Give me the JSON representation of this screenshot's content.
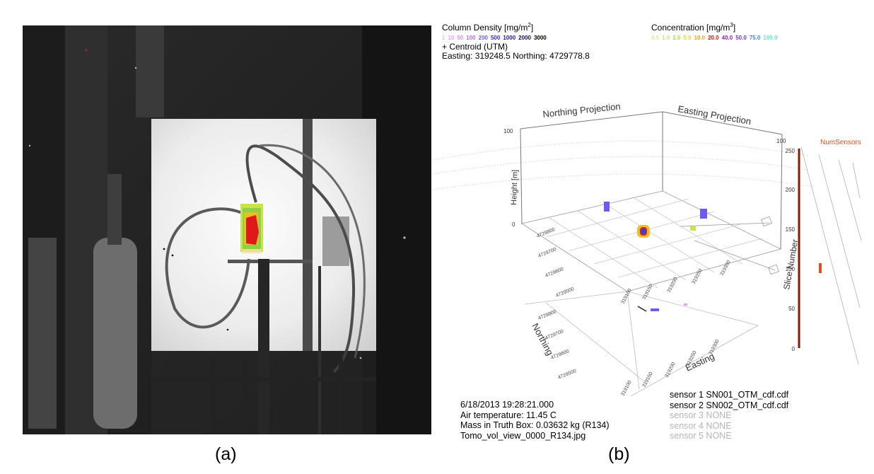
{
  "captions": {
    "a": "(a)",
    "b": "(b)"
  },
  "legend": {
    "column_density_title": "Column Density [mg/m",
    "column_density_sup": "2",
    "column_density_close": "]",
    "column_density_scale": [
      {
        "label": "1",
        "color": "#f3b8f0"
      },
      {
        "label": "10",
        "color": "#e7a0e8"
      },
      {
        "label": "50",
        "color": "#d78ee0"
      },
      {
        "label": "100",
        "color": "#b06ee8"
      },
      {
        "label": "200",
        "color": "#6a64e8"
      },
      {
        "label": "500",
        "color": "#2e2ed8"
      },
      {
        "label": "1000",
        "color": "#1a1aa8"
      },
      {
        "label": "2000",
        "color": "#0f0f60"
      },
      {
        "label": "3000",
        "color": "#000000"
      }
    ],
    "centroid_label": "+ Centroid (UTM)",
    "easting_northing": "Easting: 319248.5 Northing: 4729778.8",
    "concentration_title": "Concentration [mg/m",
    "concentration_sup": "3",
    "concentration_close": "]",
    "concentration_scale": [
      {
        "label": "0.5",
        "color": "#d4f08c"
      },
      {
        "label": "1.0",
        "color": "#c4e86c"
      },
      {
        "label": "2.0",
        "color": "#aedc4c"
      },
      {
        "label": "5.0",
        "color": "#e8d820"
      },
      {
        "label": "10.0",
        "color": "#f0a010"
      },
      {
        "label": "20.0",
        "color": "#d81818"
      },
      {
        "label": "40.0",
        "color": "#a020c0"
      },
      {
        "label": "50.0",
        "color": "#6a38e0"
      },
      {
        "label": "75.0",
        "color": "#3a8ae8"
      },
      {
        "label": "100.0",
        "color": "#60e8c8"
      }
    ]
  },
  "plot": {
    "northing_projection": "Northing Projection",
    "easting_projection": "Easting Projection",
    "height_label": "Height [m]",
    "height_ticks": [
      "100",
      "0"
    ],
    "easting_label": "Easting",
    "northing_label": "Northing",
    "easting_ticks": [
      "319100",
      "319150",
      "319200",
      "319250",
      "319300"
    ],
    "northing_ticks": [
      "4729500",
      "4729600",
      "4729700",
      "4729800"
    ],
    "slice_label": "Slice Number",
    "num_sensors_label": "NumSensors",
    "slice_ticks": [
      "250",
      "200",
      "150",
      "100",
      "50",
      "0"
    ],
    "colors": {
      "num_sensors": "#e05020",
      "slice_axis": "#8a1a00",
      "grid": "#c8c8c8"
    }
  },
  "info": {
    "datetime": "6/18/2013 19:28:21.000",
    "air_temperature": "Air temperature: 11.45 C",
    "mass": "Mass in Truth Box: 0.03632 kg (R134)",
    "file": "Tomo_vol_view_0000_R134.jpg"
  },
  "sensors": [
    {
      "label": "sensor 1 SN001_OTM_cdf.cdf",
      "active": true
    },
    {
      "label": "sensor 2 SN002_OTM_cdf.cdf",
      "active": true
    },
    {
      "label": "sensor 3 NONE",
      "active": false
    },
    {
      "label": "sensor 4 NONE",
      "active": false
    },
    {
      "label": "sensor 5 NONE",
      "active": false
    }
  ]
}
